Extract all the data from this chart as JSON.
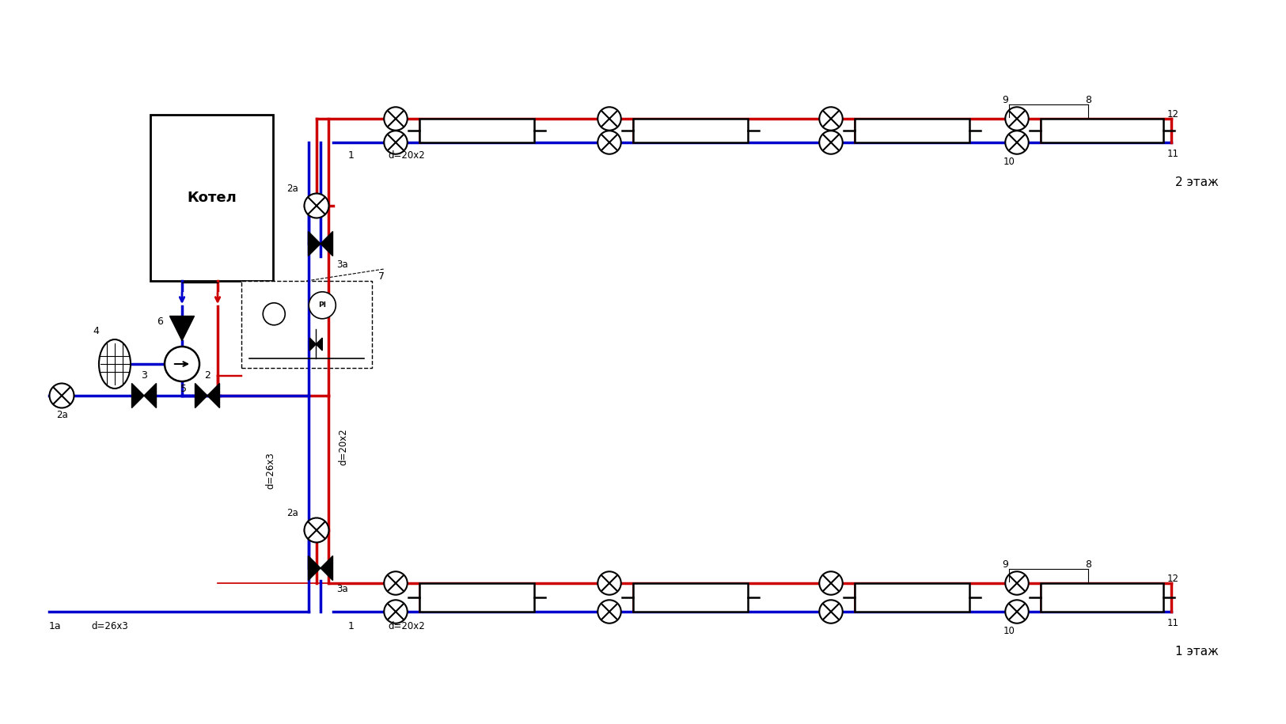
{
  "bg_color": "#ffffff",
  "red": "#cc0000",
  "blue": "#0000cc",
  "black": "#000000",
  "lw_main": 2.5,
  "lw_pipe": 1.8,
  "lw_thin": 1.2,
  "kotel_label": "Котел",
  "label_2etazh": "2 этаж",
  "label_1etazh": "1 этаж",
  "label_d26x3": "d=26x3",
  "label_d20x2": "d=20x2"
}
